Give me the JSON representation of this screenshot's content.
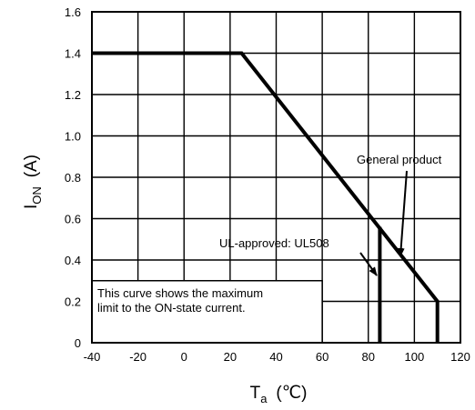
{
  "chart_data": {
    "type": "line",
    "xlabel": {
      "main": "T",
      "sub": "a",
      "unit": "(℃)"
    },
    "ylabel": {
      "main": "I",
      "sub": "ON",
      "unit": "(A)"
    },
    "xlim": [
      -40,
      120
    ],
    "ylim": [
      0,
      1.6
    ],
    "x_ticks": [
      "-40",
      "-20",
      "0",
      "20",
      "40",
      "60",
      "80",
      "100",
      "120"
    ],
    "y_ticks": [
      "0",
      "0.2",
      "0.4",
      "0.6",
      "0.8",
      "1.0",
      "1.2",
      "1.4",
      "1.6"
    ],
    "grid": true,
    "series": [
      {
        "x": [
          -40,
          25,
          110,
          110
        ],
        "y": [
          1.4,
          1.4,
          0.2,
          0
        ]
      },
      {
        "x": [
          85,
          85
        ],
        "y": [
          0,
          0.56
        ]
      }
    ],
    "annotations": [
      {
        "text": "General product",
        "x": 95,
        "y": 0.35
      },
      {
        "text": "UL-approved: UL508",
        "x": 85,
        "y": 0.32
      }
    ],
    "note": [
      "This curve shows the maximum",
      "limit to the ON-state current."
    ]
  }
}
